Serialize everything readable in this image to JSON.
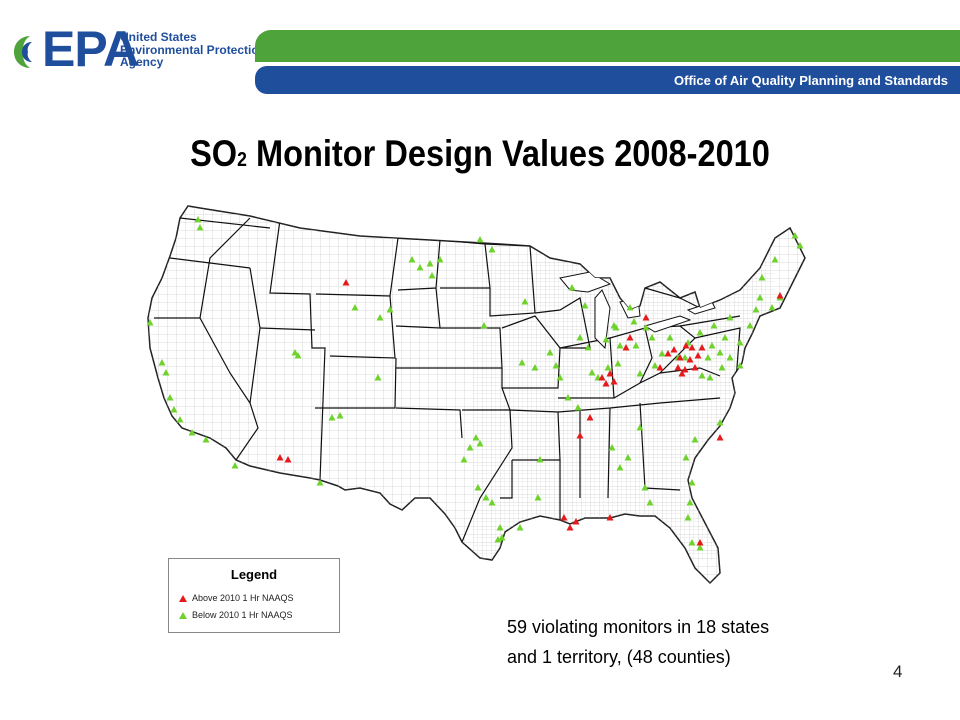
{
  "header": {
    "logo_text": "EPA",
    "agency_name": "United States\nEnvironmental Protection\nAgency",
    "office": "Office of Air Quality Planning and Standards",
    "colors": {
      "green": "#4ea43a",
      "blue": "#1f4e9c"
    }
  },
  "title": {
    "prefix": "SO",
    "subscript": "2",
    "rest": " Monitor Design Values 2008-2010"
  },
  "legend": {
    "title": "Legend",
    "above_label": "Above 2010 1 Hr NAAQS",
    "below_label": "Below 2010 1 Hr NAAQS",
    "colors": {
      "above": "#e41a1c",
      "below": "#6fd22d"
    }
  },
  "note": "59 violating monitors in 18 states\nand 1 territory, (48 counties)",
  "page_number": "4"
}
